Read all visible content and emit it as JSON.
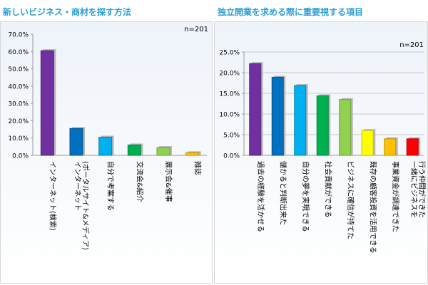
{
  "chart_data": [
    {
      "type": "bar",
      "title": "新しいビジネス・商材を探す方法",
      "note": "n=201",
      "categories": [
        "インターネット(検索)",
        "インターネット(ポータルサイト&メディア)",
        "自分で考案する",
        "交流会&紹介",
        "展示会&催事",
        "雑誌"
      ],
      "label_lines": [
        [
          "インターネット(検索)"
        ],
        [
          "インターネット",
          "(ポータルサイト&メディア)"
        ],
        [
          "自分で考案する"
        ],
        [
          "交流会&紹介"
        ],
        [
          "展示会&催事"
        ],
        [
          "雑誌"
        ]
      ],
      "values": [
        60.5,
        15.5,
        10.5,
        6.0,
        4.5,
        1.5
      ],
      "colors": [
        "#7030a0",
        "#0070c0",
        "#00b0f0",
        "#00b050",
        "#92d050",
        "#ffc000"
      ],
      "ylim": [
        0,
        70
      ],
      "yticks": [
        "0.0%",
        "10.0%",
        "20.0%",
        "30.0%",
        "40.0%",
        "50.0%",
        "60.0%",
        "70.0%"
      ],
      "grid": false
    },
    {
      "type": "bar",
      "title": "独立開業を求める際に重要視する項目",
      "note": "n=201",
      "categories": [
        "過去の経験を活かせる",
        "儲かると判断出来た",
        "自分の夢を実現できる",
        "社会貢献ができる",
        "ビジネスに確信が持てた",
        "既存の顧客投資を活用できる",
        "事業資金が調達できた",
        "一緒にビジネスを行う仲間ができた"
      ],
      "label_lines": [
        [
          "過去の経験を活かせる"
        ],
        [
          "儲かると判断出来た"
        ],
        [
          "自分の夢を実現できる"
        ],
        [
          "社会貢献ができる"
        ],
        [
          "ビジネスに確信が持てた"
        ],
        [
          "既存の顧客投資を活用できる"
        ],
        [
          "事業資金が調達できた"
        ],
        [
          "一緒にビジネスを",
          "行う仲間ができた"
        ]
      ],
      "values": [
        22.2,
        18.9,
        16.9,
        14.4,
        13.5,
        6.0,
        4.0,
        4.0
      ],
      "colors": [
        "#7030a0",
        "#0070c0",
        "#00b0f0",
        "#00b050",
        "#92d050",
        "#ffff00",
        "#ffc000",
        "#ff0000"
      ],
      "ylim": [
        0,
        25
      ],
      "yticks": [
        "0.0%",
        "5.0%",
        "10.0%",
        "15.0%",
        "20.0%",
        "25.0%"
      ],
      "grid": true
    }
  ]
}
